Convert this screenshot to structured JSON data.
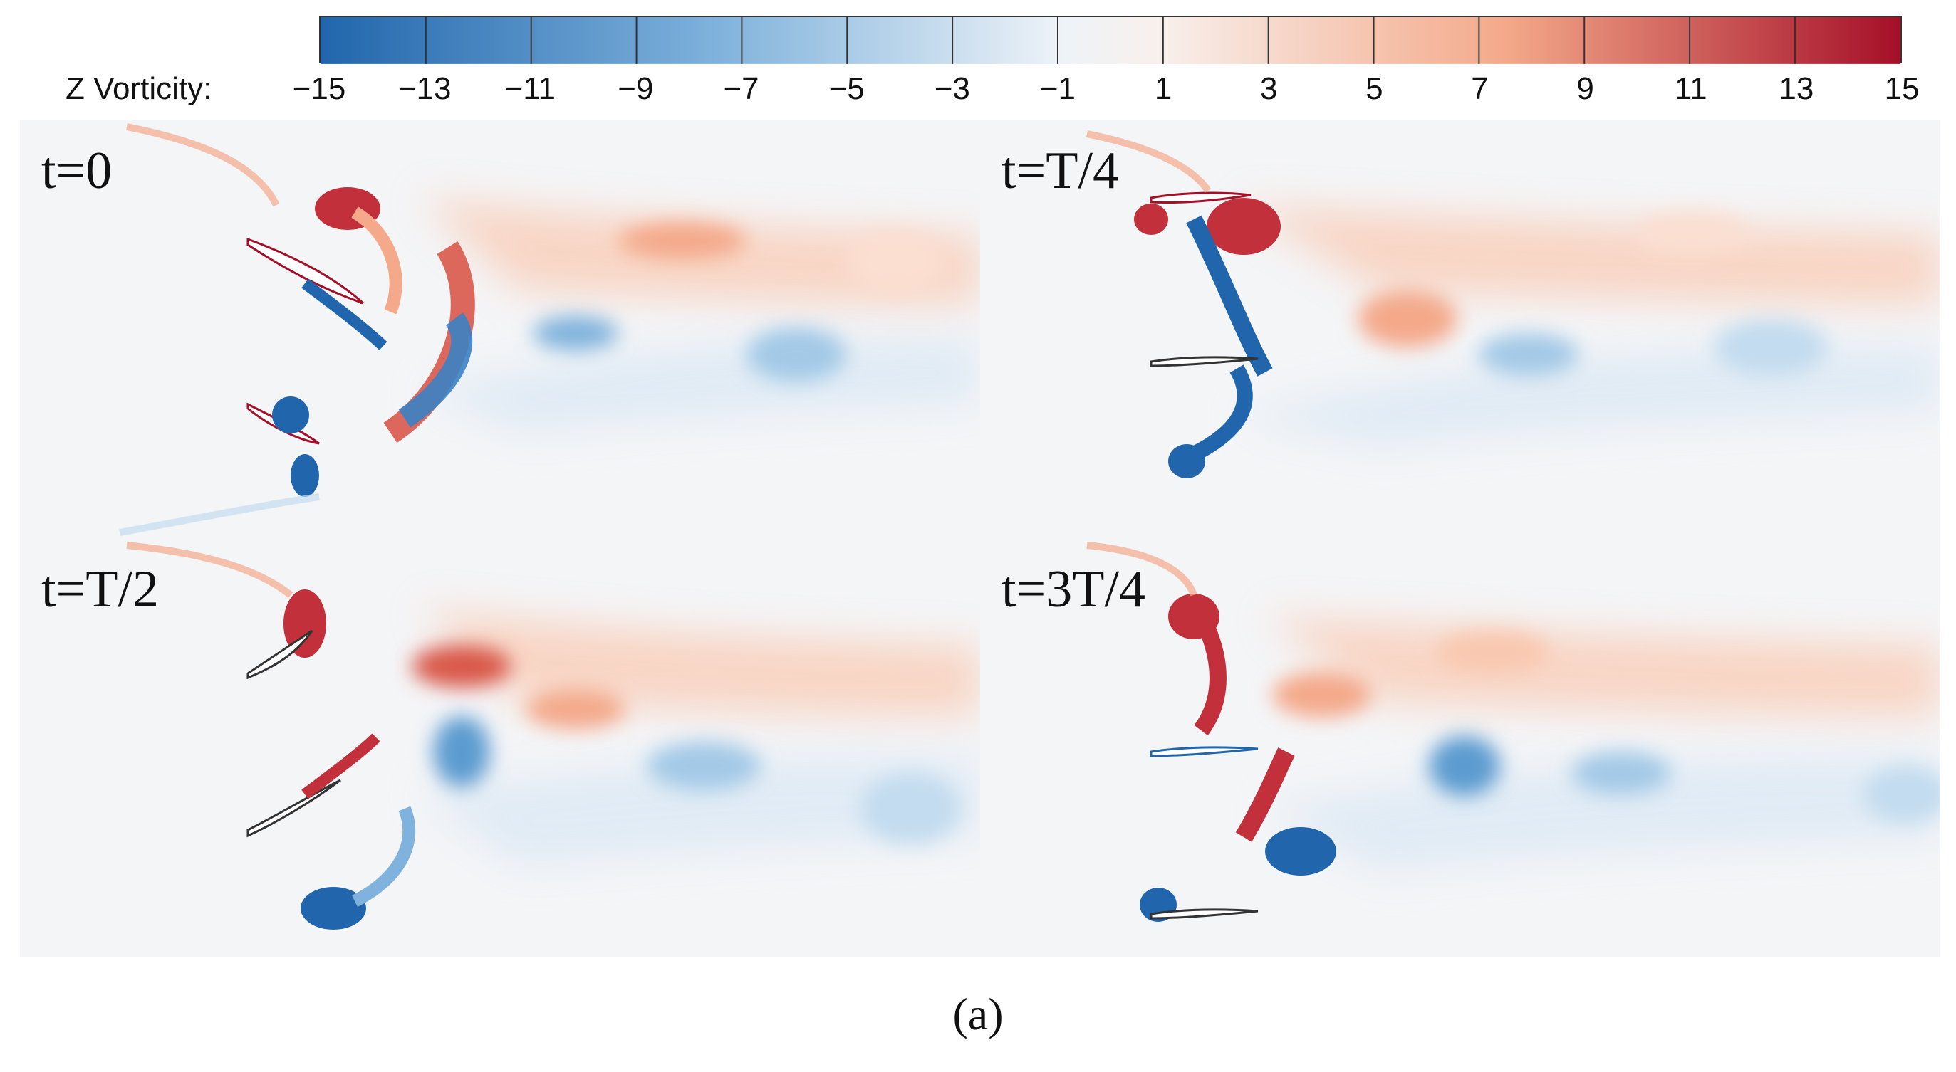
{
  "colorbar": {
    "title": "Z Vorticity:",
    "tick_labels": [
      "−15",
      "−13",
      "−11",
      "−9",
      "−7",
      "−5",
      "−3",
      "−1",
      "1",
      "3",
      "5",
      "7",
      "9",
      "11",
      "13",
      "15"
    ],
    "colors": [
      "#2166ac",
      "#3b82c4",
      "#5b9bd0",
      "#7fb2dc",
      "#a3c9e7",
      "#c3dcef",
      "#dde9f5",
      "#f1f4f8",
      "#f8f1ee",
      "#fbdfd1",
      "#f9c8b0",
      "#f4a98a",
      "#ea8566",
      "#d9584a",
      "#c2303b",
      "#a50f28"
    ]
  },
  "panels": [
    {
      "label": "t=0"
    },
    {
      "label": "t=T/4"
    },
    {
      "label": "t=T/2"
    },
    {
      "label": "t=3T/4"
    }
  ],
  "caption": "(a)"
}
